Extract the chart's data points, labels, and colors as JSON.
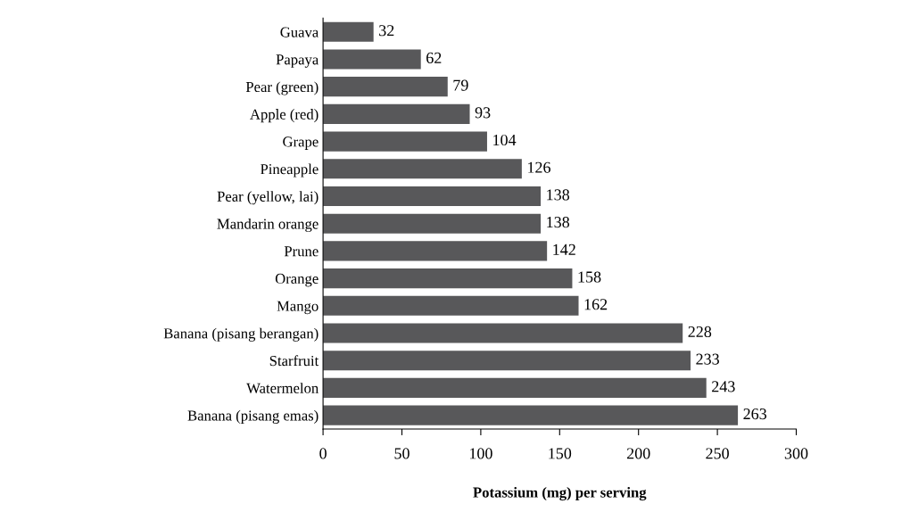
{
  "chart_data": {
    "type": "bar",
    "orientation": "horizontal",
    "xlabel": "Potassium (mg) per serving",
    "categories": [
      "Guava",
      "Papaya",
      "Pear (green)",
      "Apple (red)",
      "Grape",
      "Pineapple",
      "Pear (yellow, lai)",
      "Mandarin orange",
      "Prune",
      "Orange",
      "Mango",
      "Banana (pisang berangan)",
      "Starfruit",
      "Watermelon",
      "Banana (pisang emas)"
    ],
    "values": [
      32,
      62,
      79,
      93,
      104,
      126,
      138,
      138,
      142,
      158,
      162,
      228,
      233,
      243,
      263
    ],
    "color": "#58585a",
    "data_labels": true,
    "xlim": [
      0,
      300
    ],
    "xticks": [
      0,
      50,
      100,
      150,
      200,
      250,
      300
    ],
    "grid": false
  }
}
